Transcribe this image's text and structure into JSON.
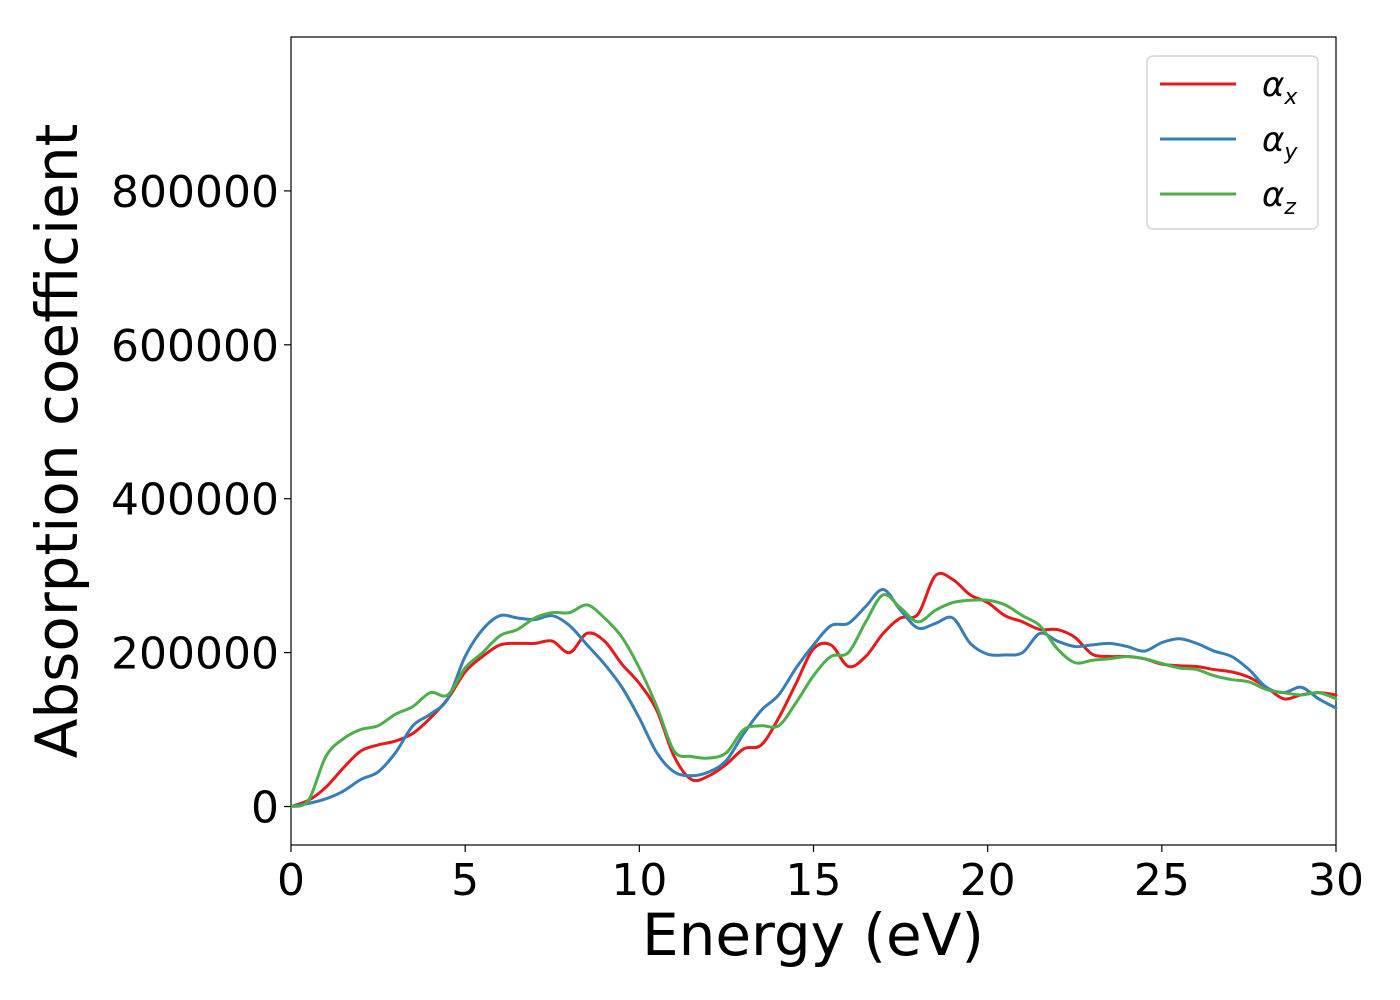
{
  "chart_data": {
    "type": "line",
    "xlabel": "Energy (eV)",
    "ylabel": "Absorption coefficient",
    "xlim": [
      0,
      30
    ],
    "ylim": [
      -50000,
      1000000
    ],
    "xticks": [
      0,
      5,
      10,
      15,
      20,
      25,
      30
    ],
    "xtick_labels": [
      "0",
      "5",
      "10",
      "15",
      "20",
      "25",
      "30"
    ],
    "yticks": [
      0,
      200000,
      400000,
      600000,
      800000
    ],
    "ytick_labels": [
      "0",
      "200000",
      "400000",
      "600000",
      "800000"
    ],
    "grid": false,
    "legend_position": "top-right",
    "series": [
      {
        "name": "αx",
        "color": "#e41a1c",
        "x": [
          0,
          0.5,
          1,
          1.5,
          2,
          2.5,
          3,
          3.5,
          4,
          4.5,
          5,
          5.5,
          6,
          6.5,
          7,
          7.5,
          8,
          8.5,
          9,
          9.5,
          10,
          10.5,
          11,
          11.5,
          12,
          12.5,
          13,
          13.5,
          14,
          14.5,
          15,
          15.5,
          16,
          16.5,
          17,
          17.5,
          18,
          18.5,
          19,
          19.5,
          20,
          20.5,
          21,
          21.5,
          22,
          22.5,
          23,
          23.5,
          24,
          24.5,
          25,
          25.5,
          26,
          26.5,
          27,
          27.5,
          28,
          28.5,
          29,
          29.5,
          30
        ],
        "y": [
          0,
          8000,
          25000,
          50000,
          72000,
          80000,
          85000,
          95000,
          115000,
          140000,
          175000,
          195000,
          210000,
          212000,
          212000,
          215000,
          200000,
          225000,
          215000,
          185000,
          160000,
          125000,
          65000,
          35000,
          40000,
          55000,
          75000,
          80000,
          115000,
          160000,
          205000,
          210000,
          182000,
          195000,
          225000,
          245000,
          250000,
          300000,
          295000,
          275000,
          265000,
          248000,
          240000,
          230000,
          230000,
          220000,
          198000,
          195000,
          195000,
          192000,
          185000,
          183000,
          182000,
          178000,
          175000,
          168000,
          155000,
          140000,
          145000,
          148000,
          145000
        ]
      },
      {
        "name": "αy",
        "color": "#377eb8",
        "x": [
          0,
          0.5,
          1,
          1.5,
          2,
          2.5,
          3,
          3.5,
          4,
          4.5,
          5,
          5.5,
          6,
          6.5,
          7,
          7.5,
          8,
          8.5,
          9,
          9.5,
          10,
          10.5,
          11,
          11.5,
          12,
          12.5,
          13,
          13.5,
          14,
          14.5,
          15,
          15.5,
          16,
          16.5,
          17,
          17.5,
          18,
          18.5,
          19,
          19.5,
          20,
          20.5,
          21,
          21.5,
          22,
          22.5,
          23,
          23.5,
          24,
          24.5,
          25,
          25.5,
          26,
          26.5,
          27,
          27.5,
          28,
          28.5,
          29,
          29.5,
          30
        ],
        "y": [
          0,
          4000,
          10000,
          20000,
          35000,
          45000,
          70000,
          105000,
          120000,
          140000,
          195000,
          230000,
          248000,
          245000,
          243000,
          248000,
          235000,
          210000,
          185000,
          155000,
          115000,
          70000,
          45000,
          40000,
          45000,
          60000,
          95000,
          125000,
          145000,
          180000,
          210000,
          235000,
          238000,
          260000,
          282000,
          255000,
          232000,
          238000,
          245000,
          212000,
          198000,
          197000,
          200000,
          225000,
          215000,
          208000,
          210000,
          212000,
          208000,
          202000,
          213000,
          218000,
          212000,
          202000,
          195000,
          178000,
          155000,
          148000,
          155000,
          140000,
          128000
        ]
      },
      {
        "name": "αz",
        "color": "#4daf4a",
        "x": [
          0,
          0.5,
          1,
          1.5,
          2,
          2.5,
          3,
          3.5,
          4,
          4.5,
          5,
          5.5,
          6,
          6.5,
          7,
          7.5,
          8,
          8.5,
          9,
          9.5,
          10,
          10.5,
          11,
          11.5,
          12,
          12.5,
          13,
          13.5,
          14,
          14.5,
          15,
          15.5,
          16,
          16.5,
          17,
          17.5,
          18,
          18.5,
          19,
          19.5,
          20,
          20.5,
          21,
          21.5,
          22,
          22.5,
          23,
          23.5,
          24,
          24.5,
          25,
          25.5,
          26,
          26.5,
          27,
          27.5,
          28,
          28.5,
          29,
          29.5,
          30
        ],
        "y": [
          0,
          8000,
          65000,
          88000,
          100000,
          105000,
          120000,
          130000,
          148000,
          145000,
          180000,
          200000,
          222000,
          230000,
          245000,
          252000,
          252000,
          262000,
          245000,
          220000,
          180000,
          130000,
          72000,
          65000,
          63000,
          70000,
          100000,
          105000,
          105000,
          135000,
          170000,
          195000,
          200000,
          240000,
          275000,
          258000,
          240000,
          255000,
          265000,
          268000,
          268000,
          262000,
          248000,
          235000,
          205000,
          187000,
          190000,
          192000,
          195000,
          192000,
          186000,
          180000,
          178000,
          170000,
          165000,
          162000,
          152000,
          148000,
          145000,
          148000,
          140000
        ]
      }
    ]
  }
}
